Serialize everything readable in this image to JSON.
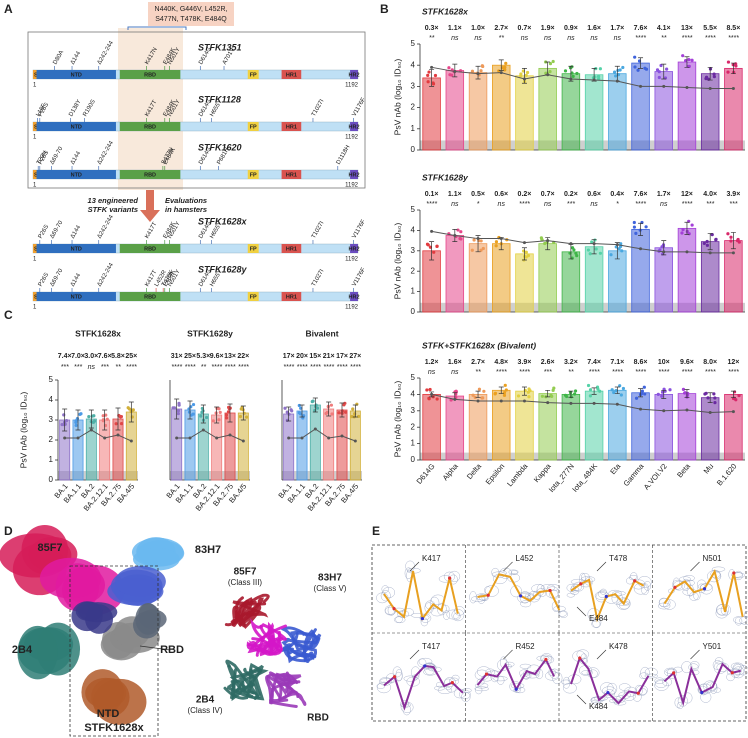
{
  "figure": {
    "panel_letters": [
      "A",
      "B",
      "C",
      "D",
      "E"
    ],
    "panel_a": {
      "mutation_box": [
        "N440K, G446V, L452R,",
        "S477N, T478K, E484Q"
      ],
      "domains": [
        "SP",
        "NTD",
        "RBD",
        "FP",
        "HR1",
        "HR2"
      ],
      "start": "1",
      "end": "1192",
      "left_note": [
        "13 engineered",
        "STFK variants"
      ],
      "right_note": [
        "Evaluations",
        "in hamsters"
      ],
      "constructs": [
        {
          "name": "STFK1351",
          "mutations": [
            {
              "label": "D80A"
            },
            {
              "label": "Δ144"
            },
            {
              "label": "Δ242-244"
            },
            {
              "label": "K417N"
            },
            {
              "label": "E484K"
            },
            {
              "label": "N501Y"
            },
            {
              "label": "D614G"
            },
            {
              "label": "A701V"
            }
          ]
        },
        {
          "name": "STFK1128",
          "mutations": [
            {
              "label": "L18F"
            },
            {
              "label": "P26S"
            },
            {
              "label": "D138Y"
            },
            {
              "label": "R190S"
            },
            {
              "label": "K417T"
            },
            {
              "label": "E484K"
            },
            {
              "label": "N501Y"
            },
            {
              "label": "D614G"
            },
            {
              "label": "H655Y"
            },
            {
              "label": "T1027I"
            },
            {
              "label": "V1176F"
            }
          ]
        },
        {
          "name": "STFK1620",
          "mutations": [
            {
              "label": "T20N"
            },
            {
              "label": "P26S"
            },
            {
              "label": "Δ69-70"
            },
            {
              "label": "Δ144"
            },
            {
              "label": "Δ242-244"
            },
            {
              "label": "S477N"
            },
            {
              "label": "E484K"
            },
            {
              "label": "D614G"
            },
            {
              "label": "P681H"
            },
            {
              "label": "D1118H"
            }
          ]
        },
        {
          "name": "STFK1628x",
          "mutations": [
            {
              "label": "P26S"
            },
            {
              "label": "Δ69-70"
            },
            {
              "label": "Δ144"
            },
            {
              "label": "Δ242-244"
            },
            {
              "label": "K417T"
            },
            {
              "label": "E484K"
            },
            {
              "label": "N501Y"
            },
            {
              "label": "D614G"
            },
            {
              "label": "H655Y"
            },
            {
              "label": "T1027I"
            },
            {
              "label": "V1176F"
            }
          ]
        },
        {
          "name": "STFK1628y",
          "mutations": [
            {
              "label": "P26S"
            },
            {
              "label": "Δ69-70"
            },
            {
              "label": "Δ144"
            },
            {
              "label": "Δ242-244"
            },
            {
              "label": "K417T"
            },
            {
              "label": "L452R",
              "color": "#d8392b"
            },
            {
              "label": "T478K",
              "color": "#d8392b"
            },
            {
              "label": "E484K"
            },
            {
              "label": "N501Y"
            },
            {
              "label": "D614G"
            },
            {
              "label": "H655Y"
            },
            {
              "label": "T1027I"
            },
            {
              "label": "V1176F"
            }
          ]
        }
      ]
    },
    "panel_d": {
      "density_labels": [
        "85F7",
        "83H7",
        "2B4",
        "RBD",
        "NTD"
      ],
      "box_label": "STFK1628x",
      "model_labels": [
        [
          "85F7",
          "(Class III)"
        ],
        [
          "83H7",
          "(Class V)"
        ],
        [
          "2B4",
          "(Class IV)"
        ],
        [
          "RBD"
        ]
      ]
    },
    "panel_e": {
      "top": [
        [
          "K417"
        ],
        [
          "L452"
        ],
        [
          "T478",
          "E484"
        ],
        [
          "N501"
        ]
      ],
      "bottom": [
        [
          "T417"
        ],
        [
          "R452"
        ],
        [
          "K478",
          "K484"
        ],
        [
          "Y501"
        ]
      ]
    }
  },
  "chart_data": [
    {
      "type": "bar",
      "title": "STFK1628x",
      "y_label": "PsV nAb (log₁₀ ID₅₀)",
      "ylim": [
        0,
        5
      ],
      "yticks": [
        0,
        1,
        2,
        3,
        4,
        5
      ],
      "lod": 0.45,
      "values": [
        3.4,
        3.75,
        3.65,
        4.0,
        3.5,
        3.85,
        3.6,
        3.55,
        3.6,
        4.1,
        3.7,
        4.15,
        3.6,
        3.85
      ],
      "errors": [
        0.4,
        0.3,
        0.3,
        0.25,
        0.35,
        0.3,
        0.35,
        0.3,
        0.35,
        0.25,
        0.35,
        0.25,
        0.3,
        0.25
      ],
      "reference_values": [
        3.9,
        3.7,
        3.6,
        3.65,
        3.35,
        3.55,
        3.35,
        3.3,
        3.25,
        3.0,
        3.0,
        2.95,
        2.9,
        2.9
      ],
      "colors": [
        "#e23b3f",
        "#e6468a",
        "#ee9a5a",
        "#eaa020",
        "#e2d040",
        "#93cc50",
        "#3fb548",
        "#55d2a8",
        "#4aa8e0",
        "#3f63dc",
        "#8a52de",
        "#a43fd8",
        "#6a2aa0",
        "#d8286a"
      ],
      "annotations": [
        "0.3×",
        "1.1×",
        "1.0×",
        "2.7×",
        "0.7×",
        "1.9×",
        "0.9×",
        "1.6×",
        "1.7×",
        "7.6×",
        "4.1×",
        "13×",
        "5.5×",
        "8.5×"
      ],
      "significance": [
        "**",
        "ns",
        "ns",
        "**",
        "ns",
        "ns",
        "ns",
        "ns",
        "ns",
        "****",
        "**",
        "****",
        "****",
        "****"
      ]
    },
    {
      "type": "bar",
      "title": "STFK1628y",
      "y_label": "PsV nAb (log₁₀ ID₅₀)",
      "ylim": [
        0,
        5
      ],
      "yticks": [
        0,
        1,
        2,
        3,
        4,
        5
      ],
      "lod": 0.45,
      "values": [
        3.0,
        3.75,
        3.35,
        3.35,
        2.85,
        3.35,
        2.95,
        3.2,
        3.0,
        4.05,
        3.15,
        4.1,
        3.45,
        3.5
      ],
      "errors": [
        0.45,
        0.3,
        0.4,
        0.3,
        0.3,
        0.3,
        0.35,
        0.35,
        0.4,
        0.3,
        0.35,
        0.3,
        0.4,
        0.4
      ],
      "reference_values": [
        3.95,
        3.75,
        3.6,
        3.6,
        3.4,
        3.5,
        3.35,
        3.35,
        3.3,
        3.1,
        2.95,
        2.95,
        2.9,
        2.9
      ],
      "colors": [
        "#e23b3f",
        "#e6468a",
        "#ee9a5a",
        "#eaa020",
        "#e2d040",
        "#93cc50",
        "#3fb548",
        "#55d2a8",
        "#4aa8e0",
        "#3f63dc",
        "#8a52de",
        "#a43fd8",
        "#6a2aa0",
        "#d8286a"
      ],
      "annotations": [
        "0.1×",
        "1.1×",
        "0.5×",
        "0.6×",
        "0.2×",
        "0.7×",
        "0.2×",
        "0.6×",
        "0.4×",
        "7.6×",
        "1.7×",
        "12×",
        "4.0×",
        "3.9×"
      ],
      "significance": [
        "****",
        "ns",
        "*",
        "ns",
        "****",
        "ns",
        "***",
        "ns",
        "*",
        "****",
        "ns",
        "****",
        "***",
        "***"
      ]
    },
    {
      "type": "bar",
      "title": "STFK+STFK1628x (Bivalent)",
      "y_label": "PsV nAb (log₁₀ ID₅₀)",
      "ylim": [
        0,
        5
      ],
      "yticks": [
        0,
        1,
        2,
        3,
        4,
        5
      ],
      "lod": 0.45,
      "categories": [
        "D614G",
        "Alpha",
        "Delta",
        "Epsilon",
        "Lambda",
        "Kappa",
        "Iota_277N",
        "Iota_484K",
        "Eta",
        "Gamma",
        "A.VOI.V2",
        "Beta",
        "Mu",
        "B.1.620"
      ],
      "values": [
        4.0,
        3.9,
        4.0,
        4.25,
        4.2,
        4.05,
        4.0,
        4.2,
        4.25,
        4.1,
        4.0,
        4.05,
        3.8,
        4.0
      ],
      "errors": [
        0.15,
        0.2,
        0.2,
        0.2,
        0.25,
        0.2,
        0.2,
        0.2,
        0.2,
        0.25,
        0.25,
        0.25,
        0.3,
        0.2
      ],
      "reference_values": [
        4.0,
        3.7,
        3.6,
        3.6,
        3.6,
        3.5,
        3.45,
        3.45,
        3.4,
        3.1,
        3.0,
        3.05,
        2.9,
        2.95
      ],
      "colors": [
        "#e23b3f",
        "#e6468a",
        "#ee9a5a",
        "#eaa020",
        "#e2d040",
        "#93cc50",
        "#3fb548",
        "#55d2a8",
        "#4aa8e0",
        "#3f63dc",
        "#8a52de",
        "#a43fd8",
        "#6a2aa0",
        "#d8286a"
      ],
      "annotations": [
        "1.2×",
        "1.6×",
        "2.7×",
        "4.8×",
        "3.9×",
        "2.6×",
        "3.2×",
        "7.4×",
        "7.1×",
        "8.6×",
        "10×",
        "9.6×",
        "8.0×",
        "12×"
      ],
      "significance": [
        "ns",
        "ns",
        "**",
        "****",
        "****",
        "***",
        "**",
        "****",
        "****",
        "****",
        "****",
        "****",
        "****",
        "****"
      ]
    },
    {
      "type": "bar",
      "title": "STFK1628x",
      "y_label": "PsV nAb (log₁₀ ID₅₀)",
      "ylim": [
        0,
        5
      ],
      "yticks": [
        0,
        1,
        2,
        3,
        4,
        5
      ],
      "lod": 0.45,
      "categories": [
        "BA.1",
        "BA.1.1",
        "BA.2",
        "BA.2.12.1",
        "BA.2.75",
        "BA.4/5"
      ],
      "values": [
        3.0,
        3.0,
        3.05,
        3.0,
        3.05,
        3.4
      ],
      "errors": [
        0.55,
        0.5,
        0.45,
        0.5,
        0.55,
        0.5
      ],
      "reference_values": [
        2.1,
        2.1,
        2.5,
        2.1,
        2.25,
        1.95
      ],
      "colors": [
        "#8e72c8",
        "#4c9ae6",
        "#4fb0a8",
        "#f07c7c",
        "#e04848",
        "#d2b03a"
      ],
      "annotations": [
        "7.4×",
        "7.0×",
        "3.0×",
        "7.6×",
        "5.8×",
        "25×"
      ],
      "significance": [
        "***",
        "***",
        "ns",
        "***",
        "**",
        "****"
      ]
    },
    {
      "type": "bar",
      "title": "STFK1628y",
      "ylim": [
        0,
        5
      ],
      "lod": 0.45,
      "categories": [
        "BA.1",
        "BA.1.1",
        "BA.2",
        "BA.2.12.1",
        "BA.2.75",
        "BA.4/5"
      ],
      "values": [
        3.55,
        3.5,
        3.3,
        3.25,
        3.35,
        3.35
      ],
      "errors": [
        0.5,
        0.45,
        0.45,
        0.4,
        0.45,
        0.35
      ],
      "reference_values": [
        2.1,
        2.1,
        2.5,
        2.1,
        2.25,
        1.95
      ],
      "colors": [
        "#8e72c8",
        "#4c9ae6",
        "#4fb0a8",
        "#f07c7c",
        "#e04848",
        "#d2b03a"
      ],
      "annotations": [
        "31×",
        "25×",
        "5.3×",
        "9.6×",
        "13×",
        "22×"
      ],
      "significance": [
        "****",
        "****",
        "**",
        "****",
        "****",
        "****"
      ]
    },
    {
      "type": "bar",
      "title": "Bivalent",
      "ylim": [
        0,
        5
      ],
      "lod": 0.45,
      "categories": [
        "BA.1",
        "BA.1.1",
        "BA.2",
        "BA.2.12.1",
        "BA.2.75",
        "BA.4/5"
      ],
      "values": [
        3.3,
        3.45,
        3.75,
        3.55,
        3.5,
        3.45
      ],
      "errors": [
        0.35,
        0.3,
        0.35,
        0.35,
        0.35,
        0.3
      ],
      "reference_values": [
        2.1,
        2.1,
        2.55,
        2.1,
        2.2,
        1.95
      ],
      "colors": [
        "#8e72c8",
        "#4c9ae6",
        "#4fb0a8",
        "#f07c7c",
        "#e04848",
        "#d2b03a"
      ],
      "annotations": [
        "17×",
        "20×",
        "15×",
        "21×",
        "17×",
        "27×"
      ],
      "significance": [
        "****",
        "****",
        "****",
        "****",
        "****",
        "****"
      ]
    }
  ]
}
